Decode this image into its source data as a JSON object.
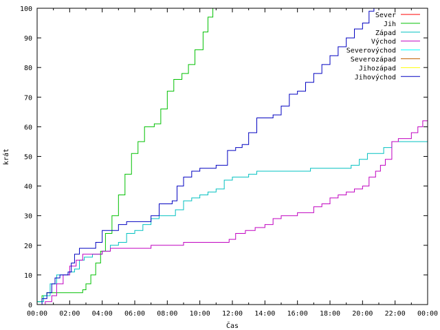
{
  "chart_data": {
    "type": "line",
    "title": "",
    "xlabel": "Čas",
    "ylabel": "krát",
    "xlim": [
      "00:00",
      "24:00"
    ],
    "ylim": [
      0,
      100
    ],
    "grid": false,
    "legend_position": "top-right",
    "x_ticks": [
      "00:00",
      "02:00",
      "04:00",
      "06:00",
      "08:00",
      "10:00",
      "12:00",
      "14:00",
      "16:00",
      "18:00",
      "20:00",
      "22:00",
      "00:00"
    ],
    "y_ticks": [
      "0",
      "10",
      "20",
      "30",
      "40",
      "50",
      "60",
      "70",
      "80",
      "90",
      "100"
    ],
    "x_unit": "hours since 00:00",
    "series": [
      {
        "name": "Sever",
        "color": "#ff0000",
        "points": []
      },
      {
        "name": "Jih",
        "color": "#00c000",
        "points": [
          [
            0,
            1
          ],
          [
            0.3,
            3
          ],
          [
            0.6,
            4
          ],
          [
            1.5,
            4
          ],
          [
            2.5,
            4
          ],
          [
            2.8,
            5
          ],
          [
            3.0,
            7
          ],
          [
            3.3,
            10
          ],
          [
            3.6,
            14
          ],
          [
            3.9,
            18
          ],
          [
            4.2,
            24
          ],
          [
            4.6,
            30
          ],
          [
            5.0,
            37
          ],
          [
            5.4,
            44
          ],
          [
            5.8,
            51
          ],
          [
            6.2,
            55
          ],
          [
            6.6,
            60
          ],
          [
            7.2,
            61
          ],
          [
            7.6,
            66
          ],
          [
            8.0,
            72
          ],
          [
            8.4,
            76
          ],
          [
            8.9,
            78
          ],
          [
            9.3,
            81
          ],
          [
            9.7,
            86
          ],
          [
            10.2,
            92
          ],
          [
            10.5,
            97
          ],
          [
            10.8,
            100
          ]
        ]
      },
      {
        "name": "Západ",
        "color": "#00c0c0",
        "points": [
          [
            0,
            1
          ],
          [
            0.4,
            3
          ],
          [
            0.8,
            7
          ],
          [
            1.2,
            10
          ],
          [
            1.6,
            10
          ],
          [
            2.0,
            11
          ],
          [
            2.3,
            12
          ],
          [
            2.6,
            15
          ],
          [
            2.9,
            16
          ],
          [
            3.4,
            17
          ],
          [
            4.0,
            18
          ],
          [
            4.5,
            20
          ],
          [
            5.0,
            21
          ],
          [
            5.5,
            24
          ],
          [
            6.0,
            25
          ],
          [
            6.5,
            27
          ],
          [
            7.0,
            29
          ],
          [
            7.5,
            30
          ],
          [
            8.0,
            30
          ],
          [
            8.5,
            32
          ],
          [
            9.0,
            35
          ],
          [
            9.5,
            36
          ],
          [
            10.0,
            37
          ],
          [
            10.5,
            38
          ],
          [
            11.0,
            39
          ],
          [
            11.5,
            42
          ],
          [
            12.0,
            43
          ],
          [
            12.5,
            43
          ],
          [
            13.0,
            44
          ],
          [
            13.5,
            45
          ],
          [
            14.0,
            45
          ],
          [
            15.0,
            45
          ],
          [
            16.0,
            45
          ],
          [
            16.8,
            46
          ],
          [
            17.5,
            46
          ],
          [
            18.5,
            46
          ],
          [
            19.3,
            47
          ],
          [
            19.8,
            49
          ],
          [
            20.3,
            51
          ],
          [
            20.8,
            51
          ],
          [
            21.3,
            53
          ],
          [
            21.8,
            55
          ],
          [
            22.5,
            55
          ],
          [
            24.0,
            55
          ]
        ]
      },
      {
        "name": "Východ",
        "color": "#c000c0",
        "points": [
          [
            0,
            0
          ],
          [
            0.5,
            1
          ],
          [
            0.9,
            3
          ],
          [
            1.2,
            7
          ],
          [
            1.6,
            10
          ],
          [
            2.0,
            13
          ],
          [
            2.4,
            15
          ],
          [
            2.8,
            17
          ],
          [
            3.4,
            17
          ],
          [
            4.0,
            18
          ],
          [
            4.5,
            19
          ],
          [
            5.5,
            19
          ],
          [
            6.5,
            19
          ],
          [
            7.0,
            20
          ],
          [
            8.0,
            20
          ],
          [
            9.0,
            21
          ],
          [
            10.0,
            21
          ],
          [
            11.0,
            21
          ],
          [
            11.8,
            22
          ],
          [
            12.2,
            24
          ],
          [
            12.8,
            25
          ],
          [
            13.4,
            26
          ],
          [
            14.0,
            27
          ],
          [
            14.5,
            29
          ],
          [
            15.0,
            30
          ],
          [
            15.5,
            30
          ],
          [
            16.0,
            31
          ],
          [
            16.5,
            31
          ],
          [
            17.0,
            33
          ],
          [
            17.5,
            34
          ],
          [
            18.0,
            36
          ],
          [
            18.5,
            37
          ],
          [
            19.0,
            38
          ],
          [
            19.5,
            39
          ],
          [
            20.0,
            40
          ],
          [
            20.4,
            43
          ],
          [
            20.8,
            45
          ],
          [
            21.1,
            47
          ],
          [
            21.4,
            49
          ],
          [
            21.8,
            55
          ],
          [
            22.2,
            56
          ],
          [
            22.6,
            56
          ],
          [
            23.0,
            58
          ],
          [
            23.4,
            60
          ],
          [
            23.7,
            62
          ],
          [
            24.0,
            64
          ]
        ]
      },
      {
        "name": "Severovýchod",
        "color": "#00ffff",
        "points": []
      },
      {
        "name": "Severozápad",
        "color": "#c06000",
        "points": []
      },
      {
        "name": "Jihozápad",
        "color": "#ffff00",
        "points": []
      },
      {
        "name": "Jihovýchod",
        "color": "#0000c0",
        "points": [
          [
            0,
            0
          ],
          [
            0.3,
            2
          ],
          [
            0.6,
            4
          ],
          [
            0.9,
            7
          ],
          [
            1.1,
            9
          ],
          [
            1.4,
            10
          ],
          [
            1.9,
            11
          ],
          [
            2.1,
            14
          ],
          [
            2.3,
            17
          ],
          [
            2.6,
            19
          ],
          [
            3.2,
            19
          ],
          [
            3.6,
            21
          ],
          [
            4.0,
            25
          ],
          [
            4.5,
            25
          ],
          [
            5.0,
            27
          ],
          [
            5.5,
            28
          ],
          [
            6.0,
            28
          ],
          [
            6.5,
            28
          ],
          [
            7.0,
            30
          ],
          [
            7.5,
            34
          ],
          [
            8.0,
            34
          ],
          [
            8.3,
            35
          ],
          [
            8.6,
            40
          ],
          [
            9.0,
            43
          ],
          [
            9.5,
            45
          ],
          [
            10.0,
            46
          ],
          [
            10.5,
            46
          ],
          [
            11.0,
            47
          ],
          [
            11.4,
            47
          ],
          [
            11.7,
            52
          ],
          [
            12.2,
            53
          ],
          [
            12.6,
            54
          ],
          [
            13.0,
            58
          ],
          [
            13.5,
            63
          ],
          [
            14.0,
            63
          ],
          [
            14.5,
            64
          ],
          [
            15.0,
            67
          ],
          [
            15.5,
            71
          ],
          [
            16.0,
            72
          ],
          [
            16.5,
            75
          ],
          [
            17.0,
            78
          ],
          [
            17.5,
            81
          ],
          [
            18.0,
            84
          ],
          [
            18.5,
            87
          ],
          [
            19.0,
            90
          ],
          [
            19.5,
            93
          ],
          [
            20.0,
            95
          ],
          [
            20.4,
            99
          ],
          [
            20.7,
            100
          ],
          [
            21.0,
            100
          ]
        ]
      }
    ]
  }
}
